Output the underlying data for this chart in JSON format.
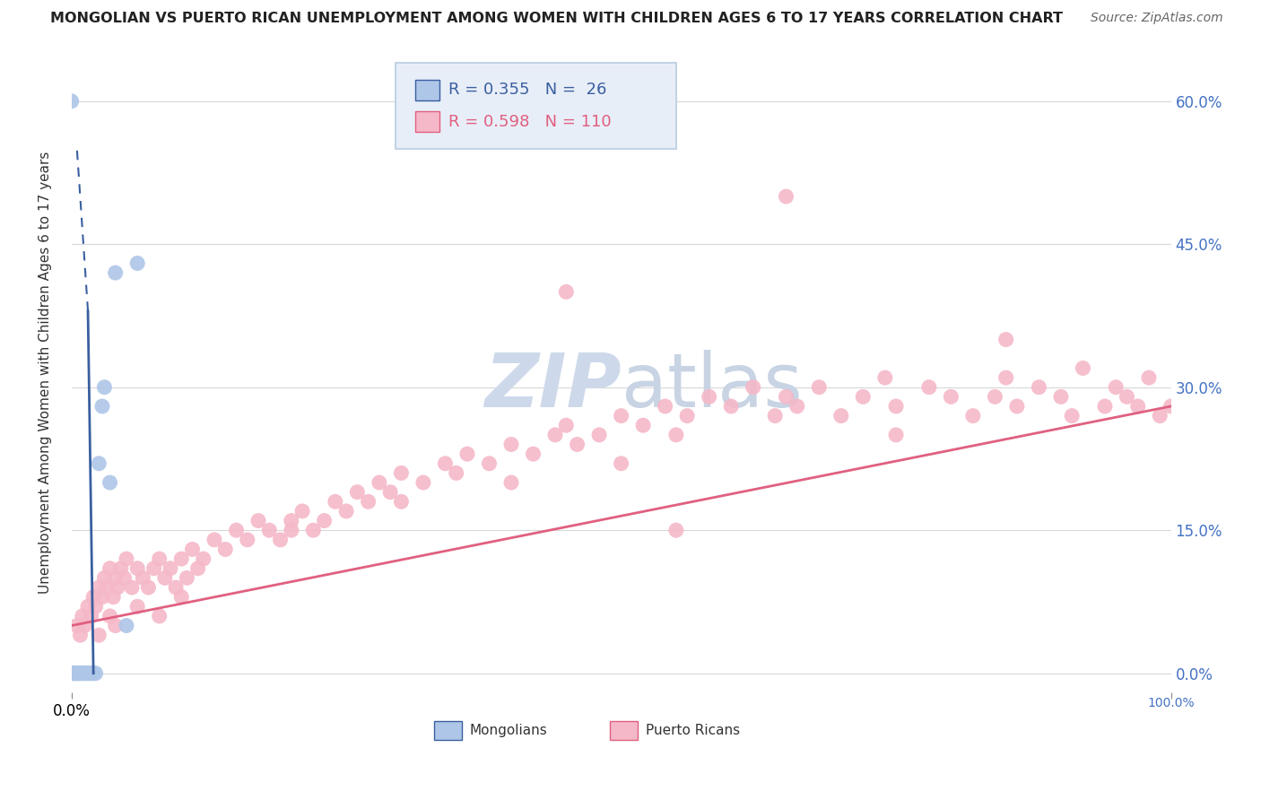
{
  "title": "MONGOLIAN VS PUERTO RICAN UNEMPLOYMENT AMONG WOMEN WITH CHILDREN AGES 6 TO 17 YEARS CORRELATION CHART",
  "source": "Source: ZipAtlas.com",
  "ylabel": "Unemployment Among Women with Children Ages 6 to 17 years",
  "mongolian_R": 0.355,
  "mongolian_N": 26,
  "puerto_rican_R": 0.598,
  "puerto_rican_N": 110,
  "mongolian_color": "#aec6e8",
  "puerto_rican_color": "#f5b8c8",
  "mongolian_line_color": "#3a5fa0",
  "puerto_rican_line_color": "#e06080",
  "background_color": "#ffffff",
  "xlim": [
    0,
    1.0
  ],
  "ylim": [
    -0.02,
    0.65
  ],
  "mongolian_x": [
    0.0,
    0.001,
    0.002,
    0.003,
    0.004,
    0.005,
    0.006,
    0.007,
    0.008,
    0.01,
    0.01,
    0.012,
    0.013,
    0.015,
    0.016,
    0.018,
    0.019,
    0.02,
    0.022,
    0.025,
    0.028,
    0.03,
    0.035,
    0.04,
    0.05,
    0.06
  ],
  "mongolian_y": [
    0.6,
    0.0,
    0.0,
    0.0,
    0.0,
    0.0,
    0.0,
    0.0,
    0.0,
    0.0,
    0.0,
    0.0,
    0.0,
    0.0,
    0.0,
    0.0,
    0.0,
    0.0,
    0.0,
    0.22,
    0.28,
    0.3,
    0.2,
    0.42,
    0.05,
    0.43
  ],
  "puerto_rican_x": [
    0.005,
    0.008,
    0.01,
    0.012,
    0.015,
    0.018,
    0.02,
    0.022,
    0.025,
    0.028,
    0.03,
    0.032,
    0.035,
    0.038,
    0.04,
    0.042,
    0.045,
    0.048,
    0.05,
    0.055,
    0.06,
    0.065,
    0.07,
    0.075,
    0.08,
    0.085,
    0.09,
    0.095,
    0.1,
    0.105,
    0.11,
    0.115,
    0.12,
    0.13,
    0.14,
    0.15,
    0.16,
    0.17,
    0.18,
    0.19,
    0.2,
    0.21,
    0.22,
    0.23,
    0.24,
    0.25,
    0.26,
    0.27,
    0.28,
    0.29,
    0.3,
    0.32,
    0.34,
    0.35,
    0.36,
    0.38,
    0.4,
    0.42,
    0.44,
    0.45,
    0.46,
    0.48,
    0.5,
    0.52,
    0.54,
    0.55,
    0.56,
    0.58,
    0.6,
    0.62,
    0.64,
    0.65,
    0.66,
    0.68,
    0.7,
    0.72,
    0.74,
    0.75,
    0.78,
    0.8,
    0.82,
    0.84,
    0.85,
    0.86,
    0.88,
    0.9,
    0.91,
    0.92,
    0.94,
    0.95,
    0.96,
    0.97,
    0.98,
    0.99,
    1.0,
    0.5,
    0.1,
    0.2,
    0.3,
    0.4,
    0.04,
    0.06,
    0.08,
    0.025,
    0.035,
    0.55,
    0.65,
    0.75,
    0.85,
    0.45
  ],
  "puerto_rican_y": [
    0.05,
    0.04,
    0.06,
    0.05,
    0.07,
    0.06,
    0.08,
    0.07,
    0.09,
    0.08,
    0.1,
    0.09,
    0.11,
    0.08,
    0.1,
    0.09,
    0.11,
    0.1,
    0.12,
    0.09,
    0.11,
    0.1,
    0.09,
    0.11,
    0.12,
    0.1,
    0.11,
    0.09,
    0.12,
    0.1,
    0.13,
    0.11,
    0.12,
    0.14,
    0.13,
    0.15,
    0.14,
    0.16,
    0.15,
    0.14,
    0.16,
    0.17,
    0.15,
    0.16,
    0.18,
    0.17,
    0.19,
    0.18,
    0.2,
    0.19,
    0.21,
    0.2,
    0.22,
    0.21,
    0.23,
    0.22,
    0.24,
    0.23,
    0.25,
    0.26,
    0.24,
    0.25,
    0.27,
    0.26,
    0.28,
    0.25,
    0.27,
    0.29,
    0.28,
    0.3,
    0.27,
    0.29,
    0.28,
    0.3,
    0.27,
    0.29,
    0.31,
    0.28,
    0.3,
    0.29,
    0.27,
    0.29,
    0.31,
    0.28,
    0.3,
    0.29,
    0.27,
    0.32,
    0.28,
    0.3,
    0.29,
    0.28,
    0.31,
    0.27,
    0.28,
    0.22,
    0.08,
    0.15,
    0.18,
    0.2,
    0.05,
    0.07,
    0.06,
    0.04,
    0.06,
    0.15,
    0.5,
    0.25,
    0.35,
    0.4
  ],
  "yticks": [
    0.0,
    0.15,
    0.3,
    0.45,
    0.6
  ],
  "ytick_labels_right": [
    "0.0%",
    "15.0%",
    "30.0%",
    "45.0%",
    "60.0%"
  ],
  "xtick_left_label": "0.0%",
  "xtick_right_label": "100.0%",
  "grid_color": "#d8d8d8",
  "watermark_color": "#cdd8ea",
  "legend_box_color": "#e8eef8",
  "legend_box_edge": "#b8cce0"
}
